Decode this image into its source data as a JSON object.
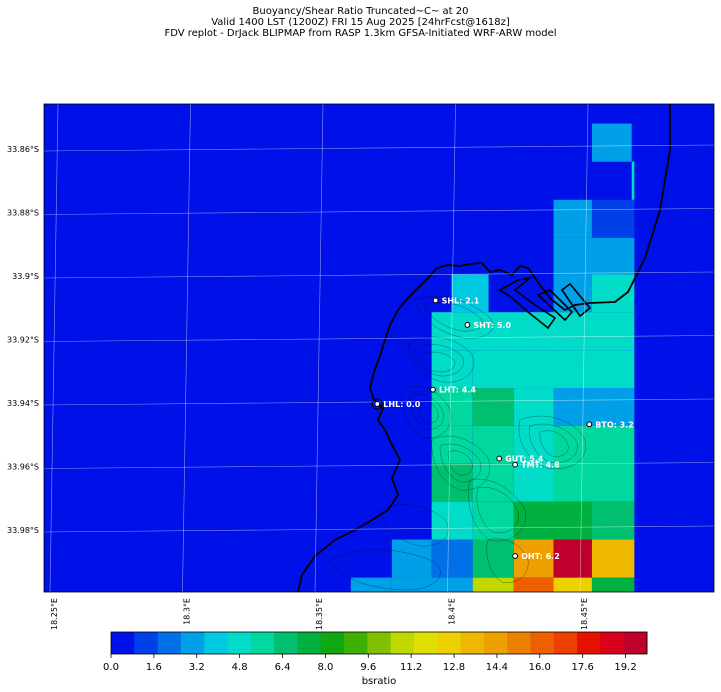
{
  "header": {
    "line1": "Buoyancy/Shear Ratio Truncated~C~    at 20",
    "line2": "Valid 1400 LST (1200Z) FRI 15 Aug 2025 [24hrFcst@1618z]",
    "line3": "FDV replot - DrJack BLIPMAP from RASP 1.3km GFSA-Initiated WRF-ARW model"
  },
  "map": {
    "lat_labels": [
      "33.86°S",
      "33.88°S",
      "33.9°S",
      "33.92°S",
      "33.94°S",
      "33.96°S",
      "33.98°S"
    ],
    "lon_labels": [
      "18.25°E",
      "18.3°E",
      "18.35°E",
      "18.4°E",
      "18.45°E"
    ],
    "stations": [
      {
        "id": "SHL",
        "label": "SHL: 2.1",
        "value": 2.1,
        "lon": 18.394,
        "lat": -33.9077
      },
      {
        "id": "SHT",
        "label": "SHT: 5.0",
        "value": 5.0,
        "lon": 18.406,
        "lat": -33.9154
      },
      {
        "id": "LHT",
        "label": "LHT: 4.4",
        "value": 4.4,
        "lon": 18.393,
        "lat": -33.9358
      },
      {
        "id": "LHL",
        "label": "LHL: 0.0",
        "value": 0.0,
        "lon": 18.372,
        "lat": -33.9403
      },
      {
        "id": "BTO",
        "label": "BTO: 3.2",
        "value": 3.2,
        "lon": 18.452,
        "lat": -33.9467
      },
      {
        "id": "GUT",
        "label": "GUT: 5.4",
        "value": 5.4,
        "lon": 18.418,
        "lat": -33.9575
      },
      {
        "id": "TMT",
        "label": "TMT: 4.8",
        "value": 4.8,
        "lon": 18.424,
        "lat": -33.9594
      },
      {
        "id": "OHT",
        "label": "OHT: 6.2",
        "value": 6.2,
        "lon": 18.424,
        "lat": -33.9882
      }
    ]
  },
  "colorbar": {
    "title": "bsratio",
    "tick_labels": [
      "0.0",
      "1.6",
      "3.2",
      "4.8",
      "6.4",
      "8.0",
      "9.6",
      "11.2",
      "12.8",
      "14.4",
      "16.0",
      "17.6",
      "19.2"
    ],
    "colors": [
      "#0010e8",
      "#0040e8",
      "#0070e8",
      "#00a0e8",
      "#00c8e0",
      "#00dcc8",
      "#00d8a0",
      "#00c070",
      "#00b040",
      "#10a810",
      "#40b000",
      "#80c000",
      "#c0d800",
      "#e0e000",
      "#ecd000",
      "#eeb800",
      "#eea000",
      "#ec8000",
      "#ec6000",
      "#ec4000",
      "#e81000",
      "#d8001c",
      "#c0002c"
    ]
  },
  "chart_data": {
    "type": "heatmap",
    "title": "Buoyancy/Shear Ratio Truncated~C~    at 20",
    "xlabel": "",
    "ylabel": "",
    "x_ticks": [
      "18.25°E",
      "18.3°E",
      "18.35°E",
      "18.4°E",
      "18.45°E"
    ],
    "y_ticks": [
      "33.86°S",
      "33.88°S",
      "33.9°S",
      "33.92°S",
      "33.94°S",
      "33.96°S",
      "33.98°S"
    ],
    "colorbar_label": "bsratio",
    "colorbar_range": [
      0.0,
      20.0
    ],
    "grid": true,
    "cells": [
      {
        "lon0": 18.453,
        "lon1": 18.468,
        "lat0": -33.852,
        "lat1": -33.864,
        "value": 3.0
      },
      {
        "lon0": 18.468,
        "lon1": 18.469,
        "lat0": -33.864,
        "lat1": -33.876,
        "value": 4.6
      },
      {
        "lon0": 18.4385,
        "lon1": 18.453,
        "lat0": -33.876,
        "lat1": -33.888,
        "value": 3.0
      },
      {
        "lon0": 18.453,
        "lon1": 18.469,
        "lat0": -33.876,
        "lat1": -33.888,
        "value": 1.2
      },
      {
        "lon0": 18.4385,
        "lon1": 18.469,
        "lat0": -33.888,
        "lat1": -33.8995,
        "value": 3.0
      },
      {
        "lon0": 18.4,
        "lon1": 18.414,
        "lat0": -33.8995,
        "lat1": -33.9114,
        "value": 4.2
      },
      {
        "lon0": 18.4385,
        "lon1": 18.453,
        "lat0": -33.8995,
        "lat1": -33.9114,
        "value": 3.2
      },
      {
        "lon0": 18.453,
        "lon1": 18.469,
        "lat0": -33.8995,
        "lat1": -33.9114,
        "value": 4.4
      },
      {
        "lon0": 18.3925,
        "lon1": 18.469,
        "lat0": -33.9114,
        "lat1": -33.9234,
        "value": 4.6
      },
      {
        "lon0": 18.3925,
        "lon1": 18.408,
        "lat0": -33.9234,
        "lat1": -33.9353,
        "value": 5.0
      },
      {
        "lon0": 18.408,
        "lon1": 18.4385,
        "lat0": -33.9234,
        "lat1": -33.9353,
        "value": 5.2
      },
      {
        "lon0": 18.4385,
        "lon1": 18.469,
        "lat0": -33.9234,
        "lat1": -33.9353,
        "value": 4.6
      },
      {
        "lon0": 18.3925,
        "lon1": 18.408,
        "lat0": -33.9353,
        "lat1": -33.9472,
        "value": 6.0
      },
      {
        "lon0": 18.408,
        "lon1": 18.4235,
        "lat0": -33.9353,
        "lat1": -33.9472,
        "value": 6.4
      },
      {
        "lon0": 18.4235,
        "lon1": 18.4385,
        "lat0": -33.9353,
        "lat1": -33.9472,
        "value": 5.0
      },
      {
        "lon0": 18.4385,
        "lon1": 18.469,
        "lat0": -33.9353,
        "lat1": -33.9472,
        "value": 3.2
      },
      {
        "lon0": 18.3925,
        "lon1": 18.408,
        "lat0": -33.9472,
        "lat1": -33.9591,
        "value": 6.0
      },
      {
        "lon0": 18.408,
        "lon1": 18.4235,
        "lat0": -33.9472,
        "lat1": -33.9591,
        "value": 5.4
      },
      {
        "lon0": 18.4235,
        "lon1": 18.4385,
        "lat0": -33.9472,
        "lat1": -33.9591,
        "value": 4.4
      },
      {
        "lon0": 18.4385,
        "lon1": 18.469,
        "lat0": -33.9472,
        "lat1": -33.9591,
        "value": 5.4
      },
      {
        "lon0": 18.3925,
        "lon1": 18.408,
        "lat0": -33.9591,
        "lat1": -33.9711,
        "value": 6.4
      },
      {
        "lon0": 18.408,
        "lon1": 18.4235,
        "lat0": -33.9591,
        "lat1": -33.9711,
        "value": 5.4
      },
      {
        "lon0": 18.4235,
        "lon1": 18.4385,
        "lat0": -33.9591,
        "lat1": -33.9711,
        "value": 4.4
      },
      {
        "lon0": 18.4385,
        "lon1": 18.469,
        "lat0": -33.9591,
        "lat1": -33.9711,
        "value": 6.0
      },
      {
        "lon0": 18.3925,
        "lon1": 18.408,
        "lat0": -33.9711,
        "lat1": -33.983,
        "value": 4.6
      },
      {
        "lon0": 18.408,
        "lon1": 18.4235,
        "lat0": -33.9711,
        "lat1": -33.983,
        "value": 5.6
      },
      {
        "lon0": 18.4235,
        "lon1": 18.4385,
        "lat0": -33.9711,
        "lat1": -33.983,
        "value": 7.6
      },
      {
        "lon0": 18.4385,
        "lon1": 18.453,
        "lat0": -33.9711,
        "lat1": -33.983,
        "value": 7.0
      },
      {
        "lon0": 18.453,
        "lon1": 18.469,
        "lat0": -33.9711,
        "lat1": -33.983,
        "value": 6.2
      },
      {
        "lon0": 18.3775,
        "lon1": 18.3925,
        "lat0": -33.983,
        "lat1": -33.995,
        "value": 3.2
      },
      {
        "lon0": 18.3925,
        "lon1": 18.408,
        "lat0": -33.983,
        "lat1": -33.995,
        "value": 2.4
      },
      {
        "lon0": 18.408,
        "lon1": 18.4235,
        "lat0": -33.983,
        "lat1": -33.995,
        "value": 6.8
      },
      {
        "lon0": 18.4235,
        "lon1": 18.4385,
        "lat0": -33.983,
        "lat1": -33.995,
        "value": 14.4
      },
      {
        "lon0": 18.4385,
        "lon1": 18.453,
        "lat0": -33.983,
        "lat1": -33.995,
        "value": 19.6
      },
      {
        "lon0": 18.453,
        "lon1": 18.469,
        "lat0": -33.983,
        "lat1": -33.995,
        "value": 13.6
      },
      {
        "lon0": 18.362,
        "lon1": 18.3775,
        "lat0": -33.995,
        "lat1": -34.0006,
        "value": 2.8
      },
      {
        "lon0": 18.3775,
        "lon1": 18.408,
        "lat0": -33.995,
        "lat1": -34.0006,
        "value": 3.2
      },
      {
        "lon0": 18.408,
        "lon1": 18.4235,
        "lat0": -33.995,
        "lat1": -34.0006,
        "value": 11.2
      },
      {
        "lon0": 18.4235,
        "lon1": 18.4385,
        "lat0": -33.995,
        "lat1": -34.0006,
        "value": 16.0
      },
      {
        "lon0": 18.4385,
        "lon1": 18.453,
        "lat0": -33.995,
        "lat1": -34.0006,
        "value": 12.6
      },
      {
        "lon0": 18.453,
        "lon1": 18.469,
        "lat0": -33.995,
        "lat1": -34.0006,
        "value": 7.0
      }
    ]
  }
}
